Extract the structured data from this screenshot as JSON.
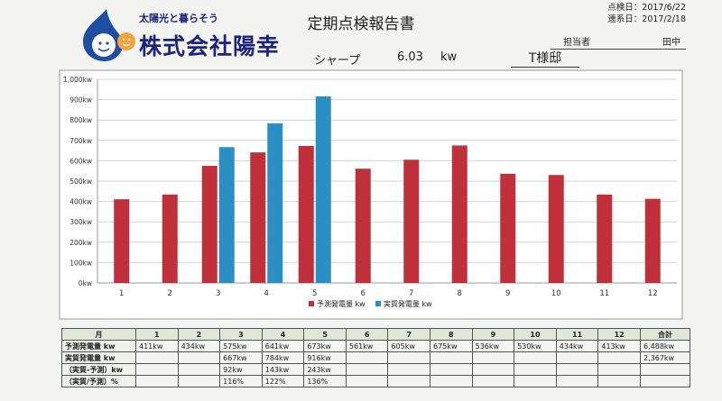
{
  "logo": {
    "tagline": "太陽光と暮らそう",
    "company": "株式会社陽幸"
  },
  "header": {
    "title": "定期点検報告書",
    "inspection_date_label": "点検日：",
    "inspection_date": "2017/6/22",
    "contact_date_label": "連系日：",
    "contact_date": "2017/2/18",
    "assignee_label": "担当者",
    "assignee": "田中",
    "maker": "シャープ",
    "capacity": "6.03",
    "capacity_unit": "kw",
    "customer": "T様邸"
  },
  "colors": {
    "forecast": "#c0303a",
    "actual": "#2b8fc4",
    "grid": "#d6d6d6"
  },
  "chart_data": {
    "type": "bar",
    "categories": [
      "1",
      "2",
      "3",
      "4",
      "5",
      "6",
      "7",
      "8",
      "9",
      "10",
      "11",
      "12"
    ],
    "series": [
      {
        "name": "予測発電量 kw",
        "values": [
          411,
          434,
          575,
          641,
          673,
          561,
          605,
          675,
          536,
          530,
          434,
          413
        ]
      },
      {
        "name": "実質発電量 kw",
        "values": [
          null,
          null,
          667,
          784,
          916,
          null,
          null,
          null,
          null,
          null,
          null,
          null
        ]
      }
    ],
    "ylim": [
      0,
      1000
    ],
    "yticks": [
      "0kw",
      "100kw",
      "200kw",
      "300kw",
      "400kw",
      "500kw",
      "600kw",
      "700kw",
      "800kw",
      "900kw",
      "1,000kw"
    ],
    "grid": true,
    "legend_position": "bottom"
  },
  "table": {
    "header": [
      "月",
      "1",
      "2",
      "3",
      "4",
      "5",
      "6",
      "7",
      "8",
      "9",
      "10",
      "11",
      "12",
      "合計"
    ],
    "rows": [
      {
        "label": "予測発電量 kw",
        "cells": [
          "411kw",
          "434kw",
          "575kw",
          "641kw",
          "673kw",
          "561kw",
          "605kw",
          "675kw",
          "536kw",
          "530kw",
          "434kw",
          "413kw",
          "6,488kw"
        ]
      },
      {
        "label": "実質発電量 kw",
        "cells": [
          "",
          "",
          "667kw",
          "784kw",
          "916kw",
          "",
          "",
          "",
          "",
          "",
          "",
          "",
          "2,367kw"
        ]
      },
      {
        "label": "（実質-予測）kw",
        "cells": [
          "",
          "",
          "92kw",
          "143kw",
          "243kw",
          "",
          "",
          "",
          "",
          "",
          "",
          "",
          ""
        ]
      },
      {
        "label": "（実質/予測）%",
        "cells": [
          "",
          "",
          "116%",
          "122%",
          "136%",
          "",
          "",
          "",
          "",
          "",
          "",
          "",
          ""
        ]
      }
    ]
  }
}
